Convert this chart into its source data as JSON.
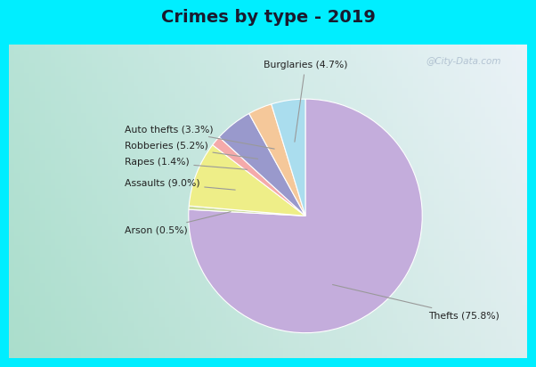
{
  "title": "Crimes by type - 2019",
  "slices": [
    {
      "label": "Thefts",
      "pct": 75.8,
      "color": "#C4ADDC"
    },
    {
      "label": "Arson",
      "pct": 0.5,
      "color": "#CCDD99"
    },
    {
      "label": "Assaults",
      "pct": 9.0,
      "color": "#EEEE88"
    },
    {
      "label": "Rapes",
      "pct": 1.4,
      "color": "#F4AAAA"
    },
    {
      "label": "Robberies",
      "pct": 5.2,
      "color": "#9999CC"
    },
    {
      "label": "Auto thefts",
      "pct": 3.3,
      "color": "#F5C89A"
    },
    {
      "label": "Burglaries",
      "pct": 4.7,
      "color": "#AADDEE"
    }
  ],
  "title_color": "#1a1a2e",
  "title_fontsize": 14,
  "outer_bg": "#00EEFF",
  "inner_bg_left": "#AAEEDD",
  "inner_bg_right": "#E8F0E8",
  "watermark": "@City-Data.com",
  "label_configs": [
    {
      "label": "Thefts (75.8%)",
      "side": "right",
      "xt": 0.62,
      "yt": -0.62
    },
    {
      "label": "Arson (0.5%)",
      "side": "left",
      "xt": -0.95,
      "yt": -0.1
    },
    {
      "label": "Assaults (9.0%)",
      "side": "left",
      "xt": -0.95,
      "yt": 0.22
    },
    {
      "label": "Rapes (1.4%)",
      "side": "left",
      "xt": -0.92,
      "yt": 0.4
    },
    {
      "label": "Robberies (5.2%)",
      "side": "left",
      "xt": -0.92,
      "yt": 0.54
    },
    {
      "label": "Auto thefts (3.3%)",
      "side": "left",
      "xt": -0.88,
      "yt": 0.68
    },
    {
      "label": "Burglaries (4.7%)",
      "side": "top",
      "xt": 0.05,
      "yt": 0.96
    }
  ]
}
